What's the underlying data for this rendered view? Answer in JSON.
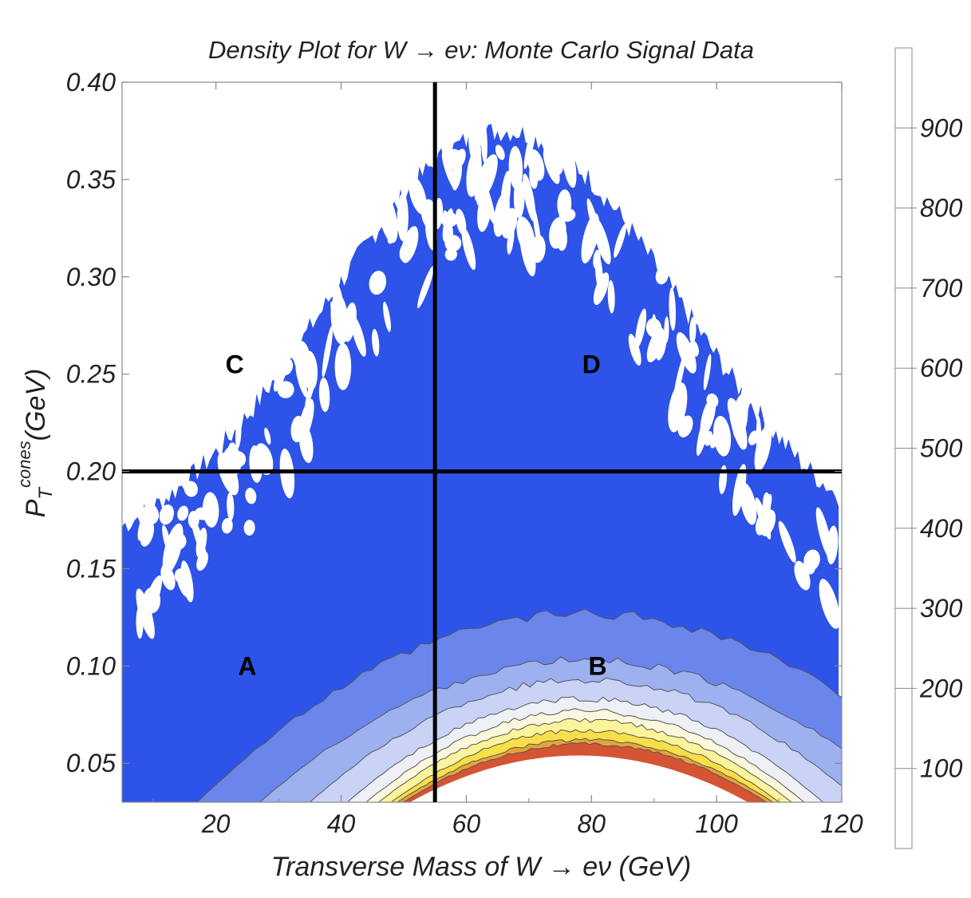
{
  "chart_data": {
    "type": "heatmap",
    "title_prefix": "Density Plot for W ",
    "title_suffix": " eν: Monte Carlo Signal Data",
    "arrow": "→",
    "xlabel_prefix": "Transverse Mass of W ",
    "xlabel_suffix": " eν (GeV)",
    "ylabel_main": "P",
    "ylabel_sub": "T",
    "ylabel_sup": "cones",
    "ylabel_unit": "(GeV)",
    "xlim": [
      5,
      120
    ],
    "ylim": [
      0.03,
      0.4
    ],
    "x_ticks": [
      20,
      40,
      60,
      80,
      100,
      120
    ],
    "x_tick_labels": [
      "20",
      "40",
      "60",
      "80",
      "100",
      "120"
    ],
    "y_ticks": [
      0.05,
      0.1,
      0.15,
      0.2,
      0.25,
      0.3,
      0.35,
      0.4
    ],
    "y_tick_labels": [
      "0.05",
      "0.10",
      "0.15",
      "0.20",
      "0.25",
      "0.30",
      "0.35",
      "0.40"
    ],
    "cut_lines": {
      "x": 55,
      "y": 0.2
    },
    "regions": [
      {
        "label": "A",
        "x": 25,
        "y": 0.1
      },
      {
        "label": "B",
        "x": 81,
        "y": 0.1
      },
      {
        "label": "C",
        "x": 23,
        "y": 0.255
      },
      {
        "label": "D",
        "x": 80,
        "y": 0.255
      }
    ],
    "levels": [
      0,
      100,
      200,
      300,
      400,
      500,
      600,
      700,
      800,
      900,
      1000
    ],
    "colorbar_labels": [
      "100",
      "200",
      "300",
      "400",
      "500",
      "600",
      "700",
      "800",
      "900"
    ],
    "colors": [
      "#2d53e8",
      "#6a86ec",
      "#9db0f0",
      "#c8d3f6",
      "#eef0f5",
      "#fbf8dd",
      "#fbf49a",
      "#f8df4a",
      "#e7a33a",
      "#d55433"
    ],
    "signal_peak": {
      "x": 73,
      "y": 0.03
    }
  }
}
